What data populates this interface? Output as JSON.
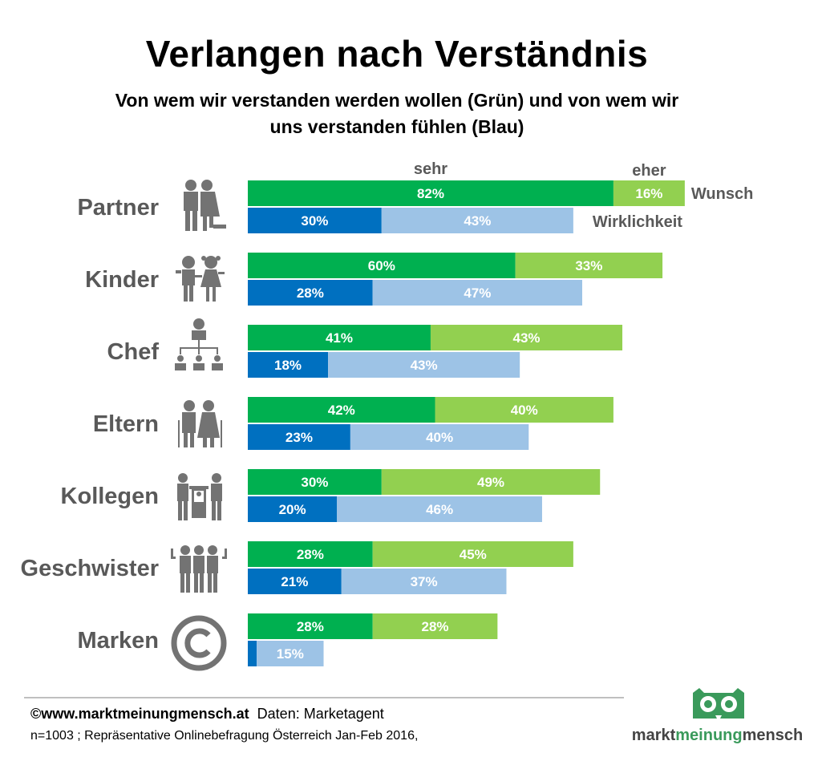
{
  "title": "Verlangen nach Verständnis",
  "subtitle_line1": "Von wem wir verstanden werden wollen (Grün) und von wem wir",
  "subtitle_line2": "uns verstanden fühlen (Blau)",
  "footer": {
    "source_url": "©www.marktmeinungmensch.at",
    "source_data": "Daten: Marketagent",
    "note": "n=1003 ; Repräsentative  Onlinebefragung Österreich Jan-Feb 2016,"
  },
  "logo": {
    "part1": "markt",
    "part2": "meinung",
    "part3": "mensch"
  },
  "colors": {
    "wunsch_sehr": "#00b050",
    "wunsch_eher": "#92d050",
    "wirklichkeit_sehr": "#0070c0",
    "wirklichkeit_eher": "#9dc3e6",
    "category_label": "#595959",
    "icon": "#737373",
    "logo_green": "#3a9a5b"
  },
  "chart_data": {
    "type": "bar",
    "orientation": "horizontal",
    "stacked": true,
    "unit": "%",
    "categories": [
      "Partner",
      "Kinder",
      "Chef",
      "Eltern",
      "Kollegen",
      "Geschwister",
      "Marken"
    ],
    "icons": [
      "couple-icon",
      "children-icon",
      "hierarchy-icon",
      "elderly-couple-icon",
      "colleagues-icon",
      "siblings-icon",
      "copyright-icon"
    ],
    "series": [
      {
        "name": "sehr",
        "group": "Wunsch",
        "values": [
          82,
          60,
          41,
          42,
          30,
          28,
          28
        ]
      },
      {
        "name": "eher",
        "group": "Wunsch",
        "values": [
          16,
          33,
          43,
          40,
          49,
          45,
          28
        ]
      },
      {
        "name": "sehr",
        "group": "Wirklichkeit",
        "values": [
          30,
          28,
          18,
          23,
          20,
          21,
          2
        ]
      },
      {
        "name": "eher",
        "group": "Wirklichkeit",
        "values": [
          43,
          47,
          43,
          40,
          46,
          37,
          15
        ]
      }
    ],
    "data_labels": {
      "Wunsch_sehr": [
        "82%",
        "60%",
        "41%",
        "42%",
        "30%",
        "28%",
        "28%"
      ],
      "Wunsch_eher": [
        "16%",
        "33%",
        "43%",
        "40%",
        "49%",
        "45%",
        "28%"
      ],
      "Wirklichkeit_sehr": [
        "30%",
        "28%",
        "18%",
        "23%",
        "20%",
        "21%",
        ""
      ],
      "Wirklichkeit_eher": [
        "43%",
        "47%",
        "43%",
        "40%",
        "46%",
        "37%",
        "15%"
      ]
    },
    "annotations": {
      "sehr": "sehr",
      "eher": "eher",
      "wunsch": "Wunsch",
      "wirklichkeit": "Wirklichkeit"
    },
    "xlim": [
      0,
      100
    ],
    "grid": false,
    "legend": "inline-annotations"
  }
}
